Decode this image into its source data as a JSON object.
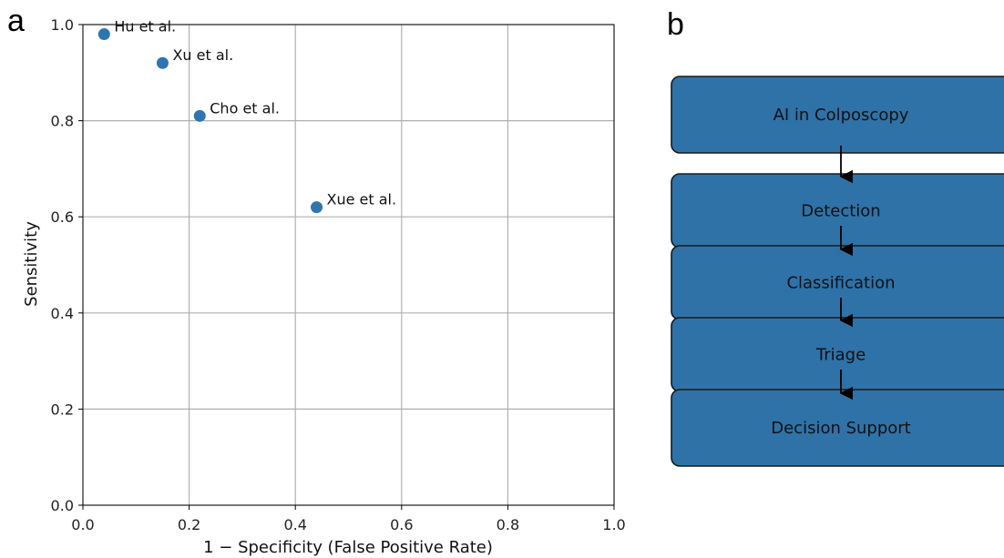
{
  "figure": {
    "panel_a_label": "a",
    "panel_b_label": "b"
  },
  "chart_data": {
    "type": "scatter",
    "title": "",
    "xlabel": "1 − Specificity (False Positive Rate)",
    "ylabel": "Sensitivity",
    "xlim": [
      0.0,
      1.0
    ],
    "ylim": [
      0.0,
      1.0
    ],
    "grid": true,
    "marker_color": "#2E75B0",
    "x_ticks": [
      "0.0",
      "0.2",
      "0.4",
      "0.6",
      "0.8",
      "1.0"
    ],
    "y_ticks": [
      "0.0",
      "0.2",
      "0.4",
      "0.6",
      "0.8",
      "1.0"
    ],
    "points": [
      {
        "label": "Hu et al.",
        "x": 0.04,
        "y": 0.98
      },
      {
        "label": "Xu et al.",
        "x": 0.15,
        "y": 0.92
      },
      {
        "label": "Cho et al.",
        "x": 0.22,
        "y": 0.81
      },
      {
        "label": "Xue et al.",
        "x": 0.44,
        "y": 0.62
      }
    ]
  },
  "flowchart": {
    "fill_color": "#2E72A8",
    "border_color": "#1a1a1a",
    "nodes": [
      "AI in Colposcopy",
      "Detection",
      "Classification",
      "Triage",
      "Decision Support"
    ]
  }
}
